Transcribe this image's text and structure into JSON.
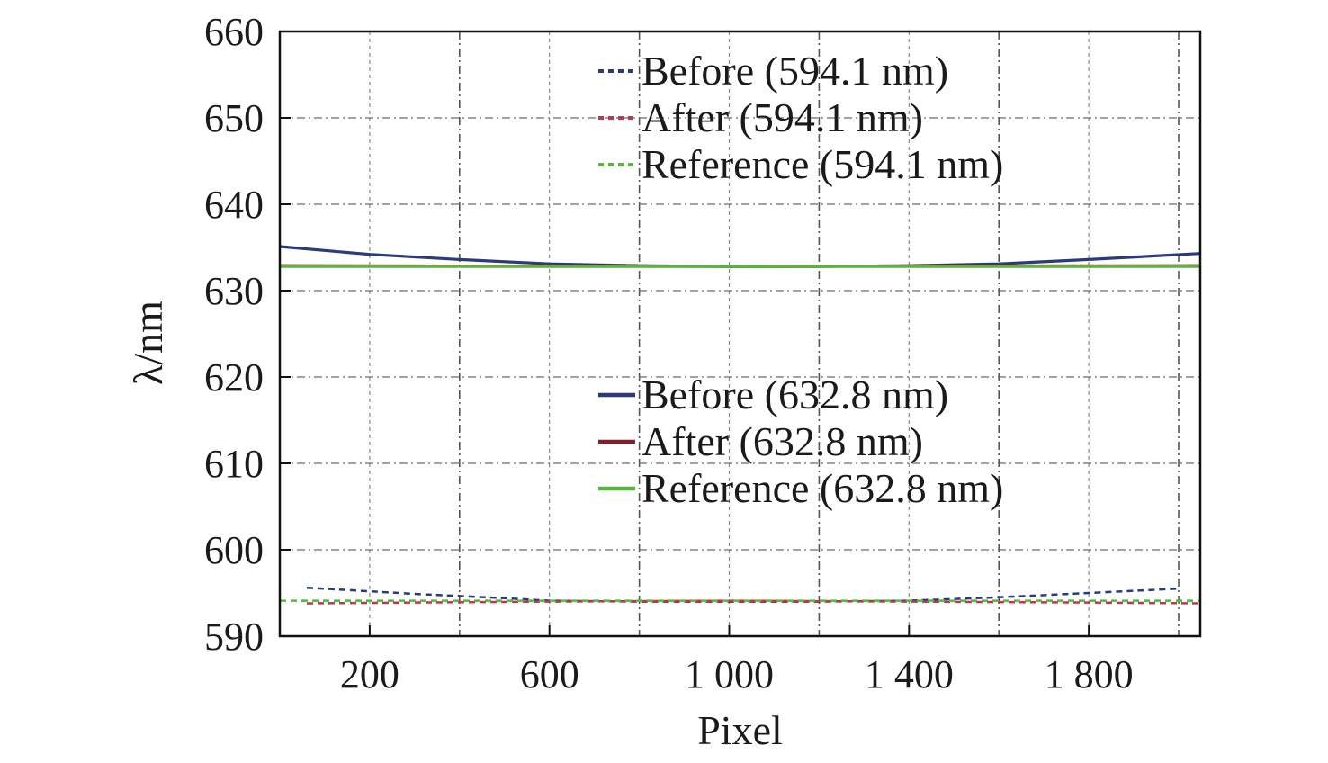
{
  "chart_data": {
    "type": "line",
    "xlabel": "Pixel",
    "ylabel": "λ/nm",
    "xlim": [
      0,
      2048
    ],
    "ylim": [
      590,
      660
    ],
    "x_ticks": [
      200,
      600,
      1000,
      1400,
      1800
    ],
    "x_tick_labels": [
      "200",
      "600",
      "1 000",
      "1 400",
      "1 800"
    ],
    "y_ticks": [
      590,
      600,
      610,
      620,
      630,
      640,
      650,
      660
    ],
    "y_tick_labels": [
      "590",
      "600",
      "610",
      "620",
      "630",
      "640",
      "650",
      "660"
    ],
    "grid": true,
    "legend_groups": [
      {
        "placement": "top-center",
        "entries": [
          "Before (594.1 nm)",
          "After (594.1 nm)",
          "Reference (594.1 nm)"
        ]
      },
      {
        "placement": "center",
        "entries": [
          "Before (632.8 nm)",
          "After (632.8 nm)",
          "Reference (632.8 nm)"
        ]
      }
    ],
    "series": [
      {
        "name": "Before (594.1 nm)",
        "color": "#2b3a7a",
        "style": "dashed",
        "x": [
          60,
          300,
          500,
          600,
          800,
          1000,
          1200,
          1400,
          1600,
          1800,
          2000
        ],
        "y": [
          595.6,
          594.9,
          594.4,
          594.1,
          594.0,
          594.0,
          594.0,
          594.1,
          594.5,
          595.0,
          595.5
        ]
      },
      {
        "name": "After (594.1 nm)",
        "color": "#c0364f",
        "style": "dashed",
        "x": [
          60,
          300,
          600,
          1000,
          1400,
          1800,
          2048
        ],
        "y": [
          593.8,
          593.9,
          594.0,
          594.1,
          594.0,
          593.9,
          593.8
        ]
      },
      {
        "name": "Reference (594.1 nm)",
        "color": "#55b63c",
        "style": "dashed",
        "x": [
          0,
          2048
        ],
        "y": [
          594.1,
          594.1
        ]
      },
      {
        "name": "Before (632.8 nm)",
        "color": "#2b3a7a",
        "style": "solid",
        "x": [
          0,
          200,
          400,
          600,
          800,
          1000,
          1200,
          1400,
          1600,
          1800,
          2048
        ],
        "y": [
          635.1,
          634.2,
          633.6,
          633.1,
          632.9,
          632.8,
          632.8,
          632.9,
          633.1,
          633.6,
          634.3
        ]
      },
      {
        "name": "After (632.8 nm)",
        "color": "#8b1a2b",
        "style": "solid",
        "x": [
          0,
          1000,
          2048
        ],
        "y": [
          632.9,
          632.8,
          632.9
        ]
      },
      {
        "name": "Reference (632.8 nm)",
        "color": "#55b63c",
        "style": "solid",
        "x": [
          0,
          2048
        ],
        "y": [
          632.8,
          632.8
        ]
      }
    ]
  }
}
